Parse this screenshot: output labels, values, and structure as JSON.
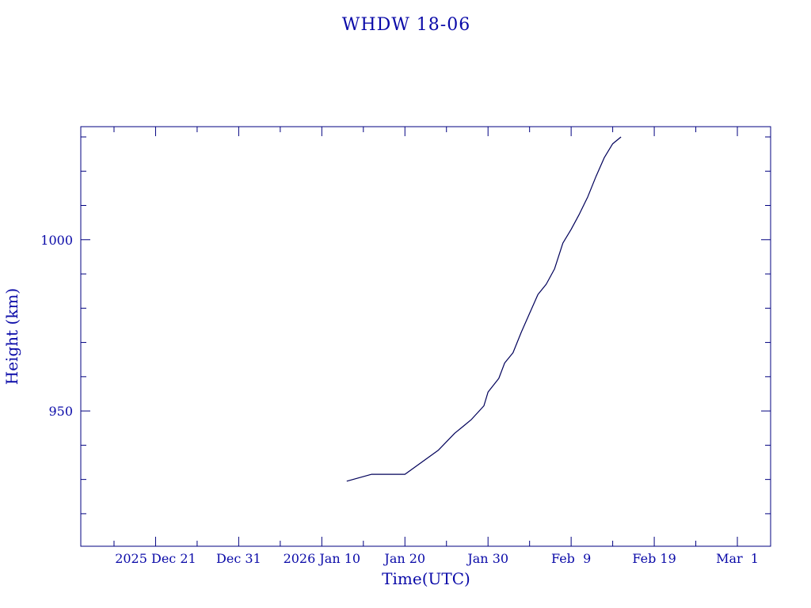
{
  "chart_data": {
    "type": "line",
    "title": "WHDW 18-06",
    "xlabel": "Time(UTC)",
    "ylabel": "Height (km)",
    "x_tick_labels": [
      "2025 Dec 21",
      "Dec 31",
      "2026 Jan 10",
      "Jan 20",
      "Jan 30",
      "Feb  9",
      "Feb 19",
      "Mar  1"
    ],
    "x_ticks": [
      "2025-12-21",
      "2025-12-31",
      "2026-01-10",
      "2026-01-20",
      "2026-01-30",
      "2026-02-09",
      "2026-02-19",
      "2026-03-01"
    ],
    "xlim": [
      "2025-12-12",
      "2026-03-05"
    ],
    "y_tick_labels": [
      "950",
      "1000"
    ],
    "y_ticks": [
      950,
      1000
    ],
    "ylim": [
      910.5,
      1033
    ],
    "grid": false,
    "series": [
      {
        "x": [
          "2026-01-13",
          "2026-01-16",
          "2026-01-20",
          "2026-01-24",
          "2026-01-26",
          "2026-01-27",
          "2026-01-28",
          "2026-01-29.5",
          "2026-01-30",
          "2026-01-31.3",
          "2026-02-01",
          "2026-02-02",
          "2026-02-03",
          "2026-02-04",
          "2026-02-05",
          "2026-02-06",
          "2026-02-07",
          "2026-02-08",
          "2026-02-09",
          "2026-02-10",
          "2026-02-11",
          "2026-02-12",
          "2026-02-13",
          "2026-02-14",
          "2026-02-15"
        ],
        "y": [
          929.5,
          931.5,
          931.5,
          938.5,
          943.5,
          945.5,
          947.5,
          951.5,
          955.5,
          959.5,
          964,
          967,
          973,
          978.5,
          984,
          987,
          991.5,
          999,
          1003,
          1007.5,
          1012.5,
          1018.5,
          1024,
          1028,
          1030
        ]
      }
    ]
  }
}
